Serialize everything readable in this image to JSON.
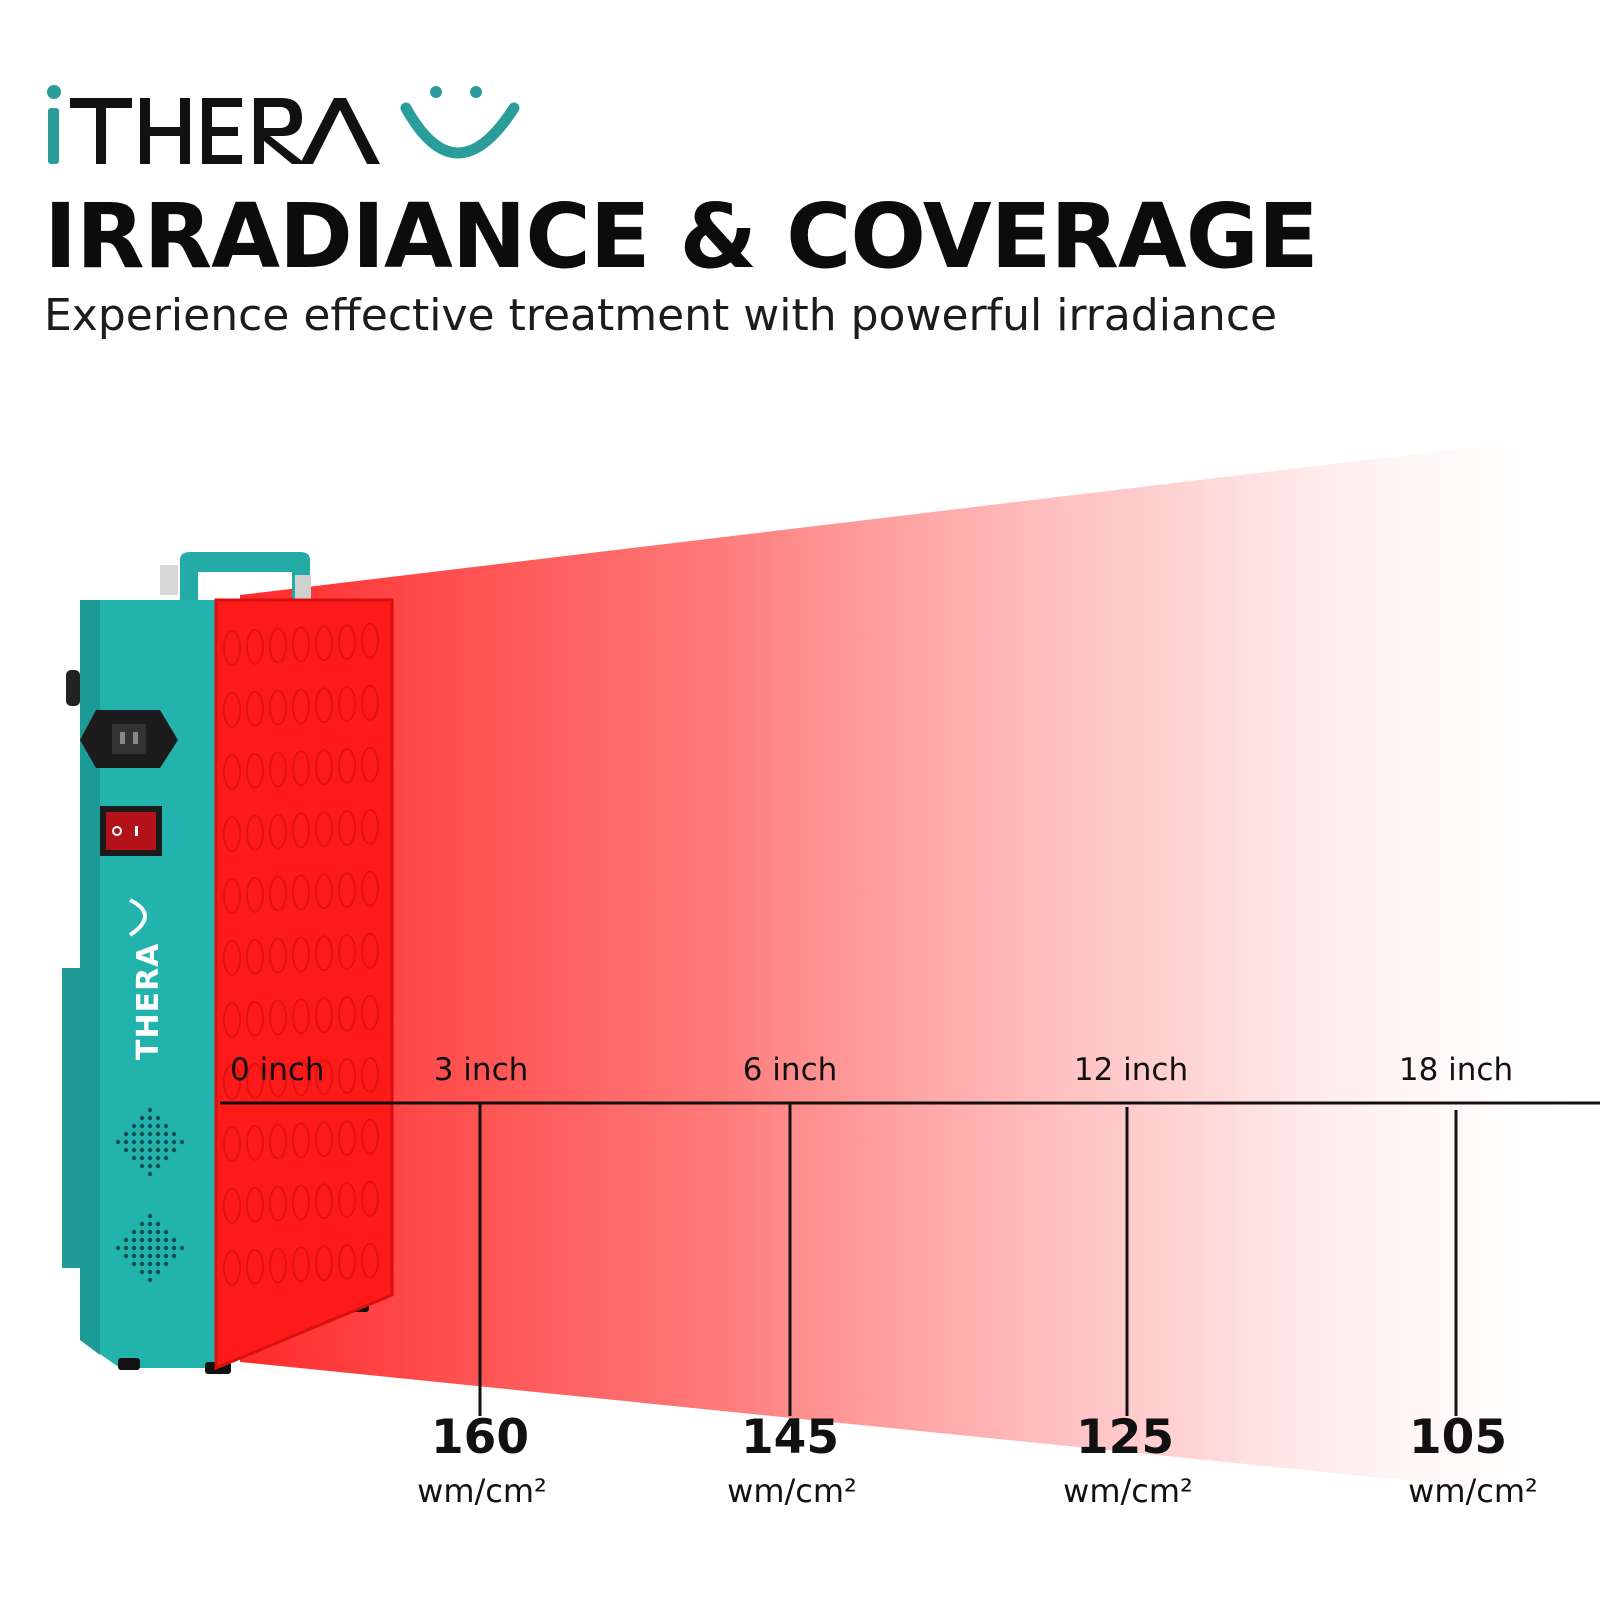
{
  "brand": {
    "logo_text": "iTHERA",
    "teal": "#2a9d9a",
    "dark": "#111111",
    "red": "#ff1a1a"
  },
  "headline": "IRRADIANCE & COVERAGE",
  "subheadline": "Experience effective treatment with powerful irradiance",
  "device": {
    "side_logo_text": "THERA",
    "power_switch_marks": "O  I"
  },
  "distances": [
    "0 inch",
    "3 inch",
    "6 inch",
    "12 inch",
    "18 inch"
  ],
  "readings": [
    {
      "value": "160",
      "unit": "wm/cm²"
    },
    {
      "value": "145",
      "unit": "wm/cm²"
    },
    {
      "value": "125",
      "unit": "wm/cm²"
    },
    {
      "value": "105",
      "unit": "wm/cm²"
    }
  ]
}
